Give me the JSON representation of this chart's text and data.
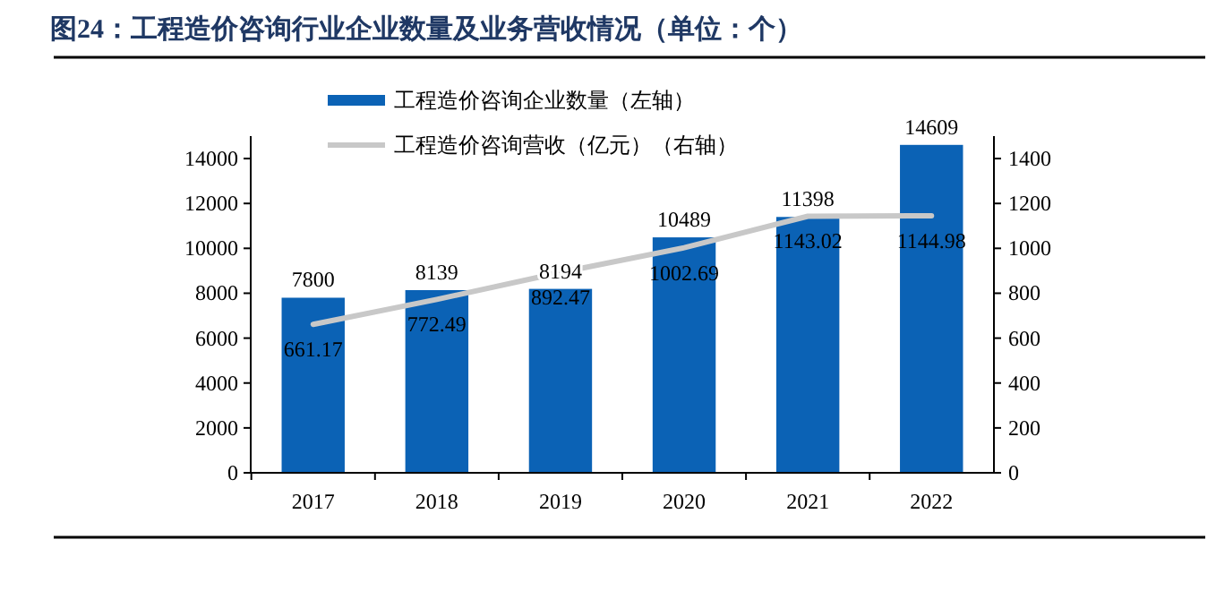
{
  "chart_data": {
    "type": "bar",
    "title": "图24：工程造价咨询行业企业数量及业务营收情况（单位：个）",
    "categories": [
      "2017",
      "2018",
      "2019",
      "2020",
      "2021",
      "2022"
    ],
    "series": [
      {
        "name": "工程造价咨询企业数量（左轴）",
        "color": "#0b62b5",
        "values": [
          7800,
          8139,
          8194,
          10489,
          11398,
          14609
        ]
      },
      {
        "name": "工程造价咨询营收（亿元）（右轴）",
        "type": "line",
        "axis": "y2",
        "color": "#c8c8c8",
        "values": [
          661.17,
          772.49,
          892.47,
          1002.69,
          1143.02,
          1144.98
        ]
      }
    ],
    "ylim": [
      0,
      15000
    ],
    "yticks": [
      0,
      2000,
      4000,
      6000,
      8000,
      10000,
      12000,
      14000
    ],
    "y2lim": [
      0,
      1500
    ],
    "y2ticks": [
      0,
      200,
      400,
      600,
      800,
      1000,
      1200,
      1400
    ],
    "data_labels": true,
    "legend": "top",
    "grid": false
  }
}
